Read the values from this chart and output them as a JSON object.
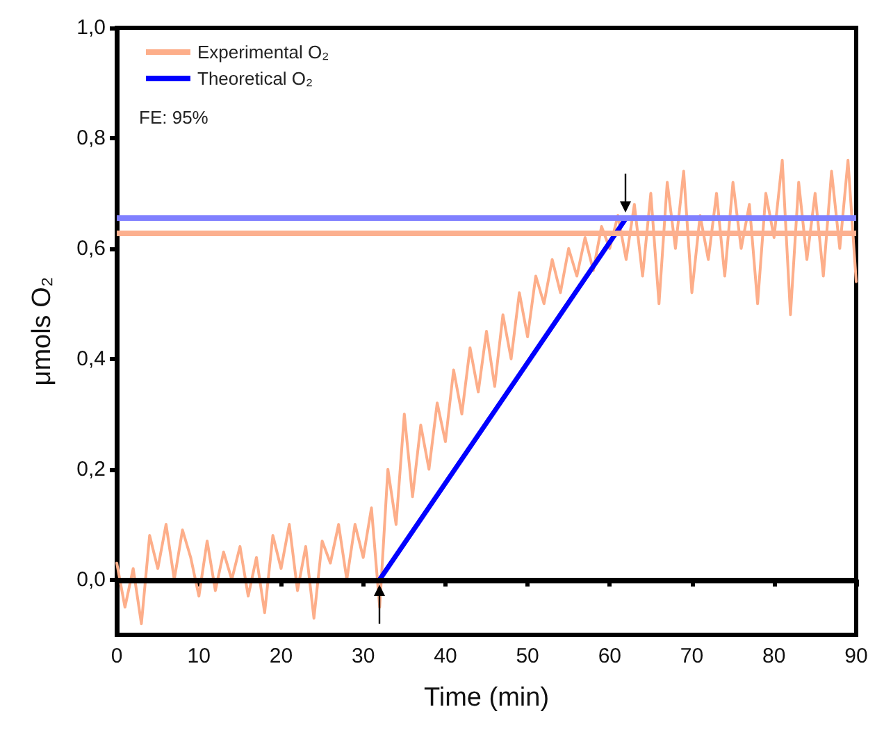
{
  "chart_data": {
    "type": "line",
    "xlabel": "Time (min)",
    "ylabel": "μmols O₂",
    "annotations": [
      "FE: 95%"
    ],
    "xlim": [
      0,
      90
    ],
    "xticks": [
      0,
      10,
      20,
      30,
      40,
      50,
      60,
      70,
      80,
      90
    ],
    "ylim": [
      -0.1,
      1.0
    ],
    "yticks": [
      {
        "value": 0,
        "label": "0,0"
      },
      {
        "value": 0.2,
        "label": "0,2"
      },
      {
        "value": 0.4,
        "label": "0,4"
      },
      {
        "value": 0.6,
        "label": "0,6"
      },
      {
        "value": 0.8,
        "label": "0,8"
      },
      {
        "value": 1.0,
        "label": "1,0"
      }
    ],
    "grid": false,
    "legend": "top left",
    "marker": "none",
    "line_style": "solid",
    "ref_lines": [
      {
        "axis": "y",
        "value": 0,
        "color": "#000000"
      },
      {
        "axis": "y",
        "value": 0.655,
        "color": "#8080ff"
      },
      {
        "axis": "y",
        "value": 0.628,
        "color": "#fcb08f"
      }
    ],
    "series": [
      {
        "name": "Experimental O₂",
        "color": "#fdae8a",
        "x": [
          0,
          1,
          2,
          3,
          4,
          5,
          6,
          7,
          8,
          9,
          10,
          11,
          12,
          13,
          14,
          15,
          16,
          17,
          18,
          19,
          20,
          21,
          22,
          23,
          24,
          25,
          26,
          27,
          28,
          29,
          30,
          31,
          32,
          33,
          34,
          35,
          36,
          37,
          38,
          39,
          40,
          41,
          42,
          43,
          44,
          45,
          46,
          47,
          48,
          49,
          50,
          51,
          52,
          53,
          54,
          55,
          56,
          57,
          58,
          59,
          60,
          61,
          62,
          63,
          64,
          65,
          66,
          67,
          68,
          69,
          70,
          71,
          72,
          73,
          74,
          75,
          76,
          77,
          78,
          79,
          80,
          81,
          82,
          83,
          84,
          85,
          86,
          87,
          88,
          89,
          90
        ],
        "values": [
          0.03,
          -0.05,
          0.02,
          -0.08,
          0.08,
          0.02,
          0.1,
          0.0,
          0.09,
          0.04,
          -0.03,
          0.07,
          -0.02,
          0.05,
          0.0,
          0.06,
          -0.03,
          0.04,
          -0.06,
          0.08,
          0.02,
          0.1,
          -0.02,
          0.06,
          -0.07,
          0.07,
          0.03,
          0.1,
          0.0,
          0.1,
          0.04,
          0.13,
          -0.05,
          0.2,
          0.1,
          0.3,
          0.15,
          0.28,
          0.2,
          0.32,
          0.25,
          0.38,
          0.3,
          0.42,
          0.34,
          0.45,
          0.35,
          0.48,
          0.4,
          0.52,
          0.44,
          0.55,
          0.5,
          0.58,
          0.52,
          0.6,
          0.55,
          0.62,
          0.56,
          0.64,
          0.6,
          0.66,
          0.58,
          0.68,
          0.55,
          0.7,
          0.5,
          0.72,
          0.6,
          0.74,
          0.52,
          0.66,
          0.58,
          0.7,
          0.55,
          0.72,
          0.6,
          0.68,
          0.5,
          0.7,
          0.62,
          0.76,
          0.48,
          0.72,
          0.58,
          0.7,
          0.55,
          0.74,
          0.6,
          0.76,
          0.54
        ]
      },
      {
        "name": "Theoretical O₂",
        "color": "#0000ff",
        "x": [
          32,
          62
        ],
        "values": [
          0,
          0.655
        ]
      }
    ]
  }
}
